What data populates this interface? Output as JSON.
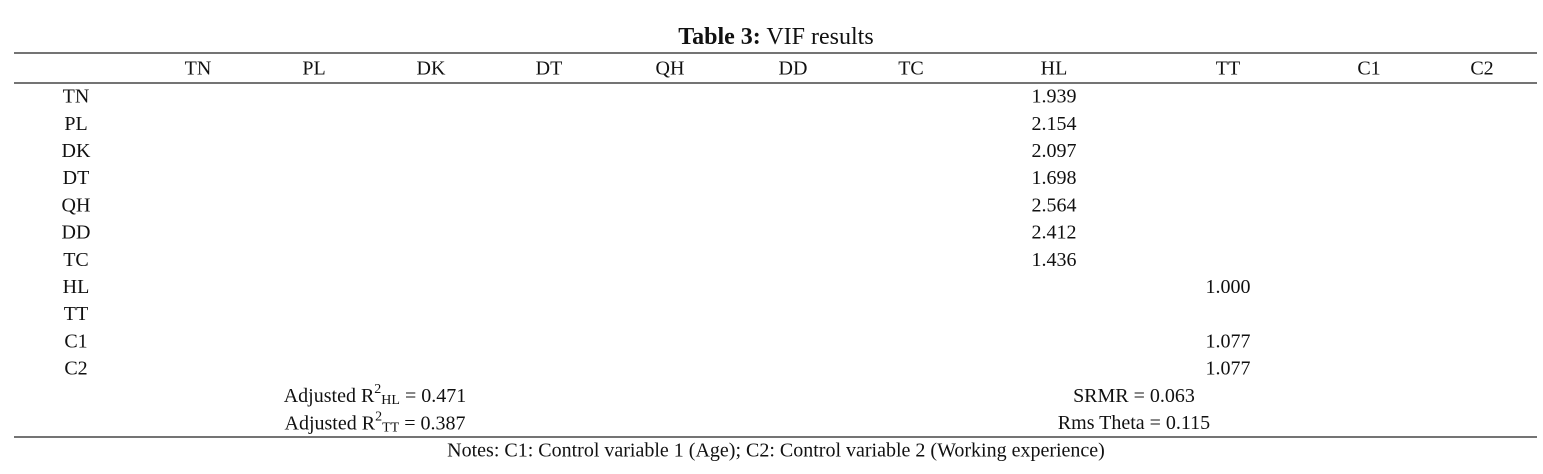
{
  "title": {
    "label": "Table 3:",
    "text": "VIF results"
  },
  "table": {
    "columns": [
      "TN",
      "PL",
      "DK",
      "DT",
      "QH",
      "DD",
      "TC",
      "HL",
      "TT",
      "C1",
      "C2"
    ],
    "rows": [
      {
        "label": "TN",
        "cells": {
          "HL": "1.939"
        }
      },
      {
        "label": "PL",
        "cells": {
          "HL": "2.154"
        }
      },
      {
        "label": "DK",
        "cells": {
          "HL": "2.097"
        }
      },
      {
        "label": "DT",
        "cells": {
          "HL": "1.698"
        }
      },
      {
        "label": "QH",
        "cells": {
          "HL": "2.564"
        }
      },
      {
        "label": "DD",
        "cells": {
          "HL": "2.412"
        }
      },
      {
        "label": "TC",
        "cells": {
          "HL": "1.436"
        }
      },
      {
        "label": "HL",
        "cells": {
          "TT": "1.000"
        }
      },
      {
        "label": "TT",
        "cells": {}
      },
      {
        "label": "C1",
        "cells": {
          "TT": "1.077"
        }
      },
      {
        "label": "C2",
        "cells": {
          "TT": "1.077"
        }
      }
    ],
    "fit": [
      {
        "left": {
          "text": "Adjusted R",
          "sup": "2",
          "sub": "HL",
          "rest": " = 0.471"
        },
        "right": "SRMR = 0.063"
      },
      {
        "left": {
          "text": "Adjusted R",
          "sup": "2",
          "sub": "TT",
          "rest": " = 0.387"
        },
        "right": "Rms Theta = 0.115"
      }
    ]
  },
  "notes": "Notes: C1: Control variable 1 (Age); C2: Control variable 2 (Working experience)"
}
